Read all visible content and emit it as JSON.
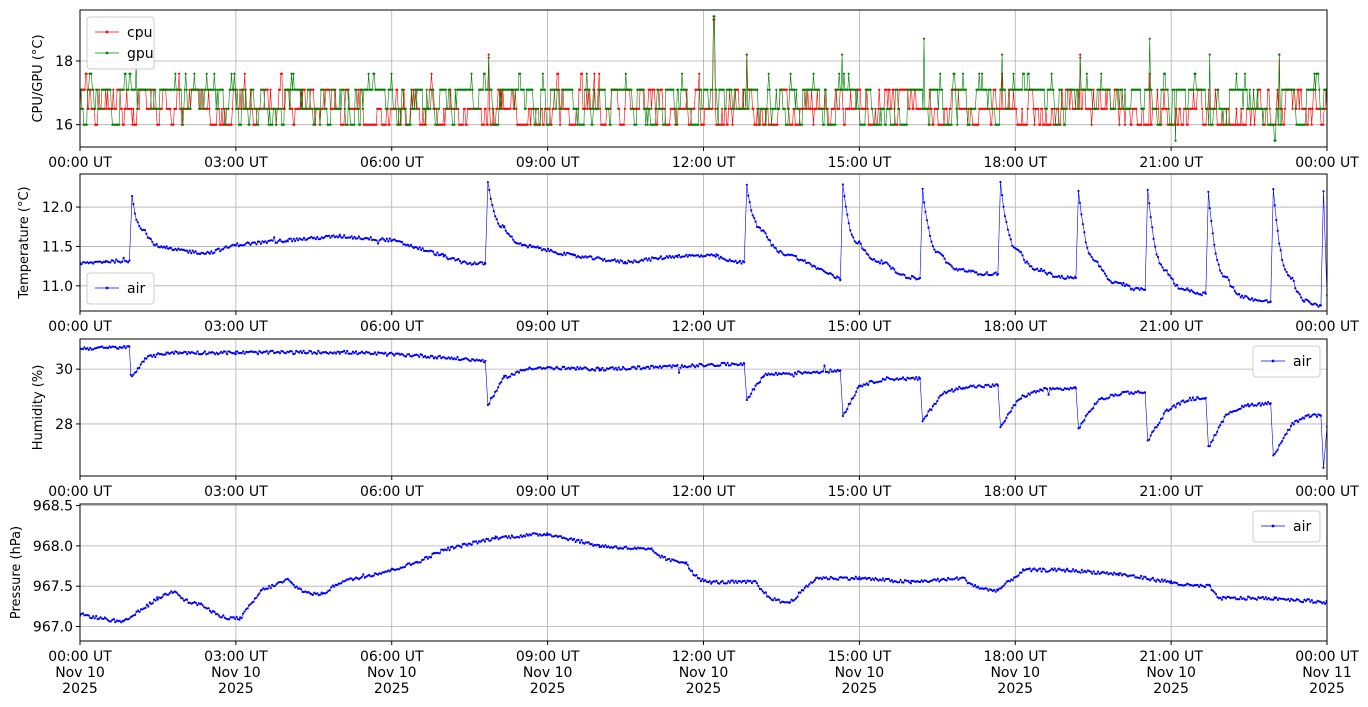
{
  "chart_data": [
    {
      "type": "line",
      "ylabel": "CPU/GPU (°C)",
      "ylim": [
        15.3,
        19.6
      ],
      "yticks": [
        16,
        18
      ],
      "xlim": [
        "2025-11-10T00:00Z",
        "2025-11-11T00:00Z"
      ],
      "xtick_labels": [
        "00:00 UT",
        "03:00 UT",
        "06:00 UT",
        "09:00 UT",
        "12:00 UT",
        "15:00 UT",
        "18:00 UT",
        "21:00 UT",
        "00:00 UT"
      ],
      "grid": true,
      "legend": "upper-left",
      "series": [
        {
          "name": "cpu",
          "color": "#ff0000",
          "baseline": 16.5,
          "levels": [
            16.0,
            16.5,
            17.1,
            17.6
          ],
          "spikes": [
            {
              "x": "2025-11-10T07:52Z",
              "y": 18.2
            },
            {
              "x": "2025-11-10T12:12Z",
              "y": 19.3
            },
            {
              "x": "2025-11-10T12:50Z",
              "y": 18.2
            },
            {
              "x": "2025-11-10T17:45Z",
              "y": 17.6
            },
            {
              "x": "2025-11-10T19:15Z",
              "y": 18.2
            },
            {
              "x": "2025-11-10T20:35Z",
              "y": 17.6
            },
            {
              "x": "2025-11-10T23:05Z",
              "y": 18.2
            }
          ]
        },
        {
          "name": "gpu",
          "color": "#008000",
          "baseline": 17.1,
          "levels": [
            16.0,
            16.5,
            17.1,
            17.6
          ],
          "spikes": [
            {
              "x": "2025-11-10T01:05Z",
              "y": 17.9
            },
            {
              "x": "2025-11-10T07:52Z",
              "y": 18.1
            },
            {
              "x": "2025-11-10T12:12Z",
              "y": 19.4
            },
            {
              "x": "2025-11-10T12:50Z",
              "y": 18.2
            },
            {
              "x": "2025-11-10T14:40Z",
              "y": 18.2
            },
            {
              "x": "2025-11-10T16:15Z",
              "y": 18.7
            },
            {
              "x": "2025-11-10T17:45Z",
              "y": 18.2
            },
            {
              "x": "2025-11-10T19:15Z",
              "y": 18.1
            },
            {
              "x": "2025-11-10T20:35Z",
              "y": 18.7
            },
            {
              "x": "2025-11-10T21:45Z",
              "y": 18.2
            },
            {
              "x": "2025-11-10T23:05Z",
              "y": 18.2
            },
            {
              "x": "2025-11-10T21:05Z",
              "y": 15.5
            },
            {
              "x": "2025-11-10T23:00Z",
              "y": 15.5
            }
          ]
        }
      ]
    },
    {
      "type": "line",
      "ylabel": "Temperature (°C)",
      "ylim": [
        10.68,
        12.42
      ],
      "yticks": [
        11.0,
        11.5,
        12.0
      ],
      "ytick_labels": [
        "11.0",
        "11.5",
        "12.0"
      ],
      "xlim": [
        "2025-11-10T00:00Z",
        "2025-11-11T00:00Z"
      ],
      "xtick_labels": [
        "00:00 UT",
        "03:00 UT",
        "06:00 UT",
        "09:00 UT",
        "12:00 UT",
        "15:00 UT",
        "18:00 UT",
        "21:00 UT",
        "00:00 UT"
      ],
      "grid": true,
      "legend": "lower-left",
      "series": [
        {
          "name": "air",
          "color": "#0000ff",
          "points": [
            [
              "2025-11-10T00:00Z",
              11.28
            ],
            [
              "2025-11-10T00:30Z",
              11.31
            ],
            [
              "2025-11-10T00:57Z",
              11.32
            ],
            [
              "2025-11-10T01:00Z",
              12.15
            ],
            [
              "2025-11-10T01:15Z",
              11.7
            ],
            [
              "2025-11-10T01:40Z",
              11.48
            ],
            [
              "2025-11-10T02:00Z",
              11.45
            ],
            [
              "2025-11-10T02:30Z",
              11.42
            ],
            [
              "2025-11-10T03:00Z",
              11.52
            ],
            [
              "2025-11-10T04:00Z",
              11.58
            ],
            [
              "2025-11-10T05:00Z",
              11.63
            ],
            [
              "2025-11-10T06:00Z",
              11.58
            ],
            [
              "2025-11-10T07:00Z",
              11.38
            ],
            [
              "2025-11-10T07:48Z",
              11.28
            ],
            [
              "2025-11-10T07:51Z",
              12.33
            ],
            [
              "2025-11-10T08:10Z",
              11.75
            ],
            [
              "2025-11-10T08:40Z",
              11.5
            ],
            [
              "2025-11-10T09:30Z",
              11.38
            ],
            [
              "2025-11-10T10:30Z",
              11.3
            ],
            [
              "2025-11-10T11:30Z",
              11.38
            ],
            [
              "2025-11-10T12:15Z",
              11.38
            ],
            [
              "2025-11-10T12:47Z",
              11.3
            ],
            [
              "2025-11-10T12:50Z",
              12.28
            ],
            [
              "2025-11-10T13:10Z",
              11.7
            ],
            [
              "2025-11-10T13:40Z",
              11.4
            ],
            [
              "2025-11-10T14:38Z",
              11.08
            ],
            [
              "2025-11-10T14:41Z",
              12.3
            ],
            [
              "2025-11-10T15:00Z",
              11.55
            ],
            [
              "2025-11-10T15:30Z",
              11.3
            ],
            [
              "2025-11-10T16:10Z",
              11.1
            ],
            [
              "2025-11-10T16:13Z",
              12.22
            ],
            [
              "2025-11-10T16:35Z",
              11.4
            ],
            [
              "2025-11-10T17:00Z",
              11.2
            ],
            [
              "2025-11-10T17:40Z",
              11.15
            ],
            [
              "2025-11-10T17:43Z",
              12.32
            ],
            [
              "2025-11-10T18:05Z",
              11.45
            ],
            [
              "2025-11-10T18:30Z",
              11.2
            ],
            [
              "2025-11-10T19:10Z",
              11.1
            ],
            [
              "2025-11-10T19:13Z",
              12.22
            ],
            [
              "2025-11-10T19:35Z",
              11.3
            ],
            [
              "2025-11-10T20:05Z",
              11.02
            ],
            [
              "2025-11-10T20:30Z",
              10.95
            ],
            [
              "2025-11-10T20:33Z",
              12.23
            ],
            [
              "2025-11-10T20:55Z",
              11.2
            ],
            [
              "2025-11-10T21:20Z",
              10.95
            ],
            [
              "2025-11-10T21:40Z",
              10.9
            ],
            [
              "2025-11-10T21:43Z",
              12.2
            ],
            [
              "2025-11-10T22:05Z",
              11.1
            ],
            [
              "2025-11-10T22:30Z",
              10.85
            ],
            [
              "2025-11-10T22:55Z",
              10.8
            ],
            [
              "2025-11-10T22:58Z",
              12.23
            ],
            [
              "2025-11-10T23:20Z",
              11.1
            ],
            [
              "2025-11-10T23:40Z",
              10.8
            ],
            [
              "2025-11-10T23:53Z",
              10.75
            ],
            [
              "2025-11-10T23:56Z",
              12.2
            ],
            [
              "2025-11-11T00:00Z",
              10.88
            ]
          ]
        }
      ]
    },
    {
      "type": "line",
      "ylabel": "Humidity (%)",
      "ylim": [
        26.1,
        31.1
      ],
      "yticks": [
        28,
        30
      ],
      "xlim": [
        "2025-11-10T00:00Z",
        "2025-11-11T00:00Z"
      ],
      "xtick_labels": [
        "00:00 UT",
        "03:00 UT",
        "06:00 UT",
        "09:00 UT",
        "12:00 UT",
        "15:00 UT",
        "18:00 UT",
        "21:00 UT",
        "00:00 UT"
      ],
      "grid": true,
      "legend": "upper-right",
      "series": [
        {
          "name": "air",
          "color": "#0000ff",
          "points": [
            [
              "2025-11-10T00:00Z",
              30.75
            ],
            [
              "2025-11-10T00:57Z",
              30.8
            ],
            [
              "2025-11-10T01:00Z",
              29.7
            ],
            [
              "2025-11-10T01:15Z",
              30.4
            ],
            [
              "2025-11-10T01:40Z",
              30.6
            ],
            [
              "2025-11-10T03:00Z",
              30.6
            ],
            [
              "2025-11-10T05:00Z",
              30.62
            ],
            [
              "2025-11-10T06:30Z",
              30.5
            ],
            [
              "2025-11-10T07:48Z",
              30.3
            ],
            [
              "2025-11-10T07:51Z",
              28.7
            ],
            [
              "2025-11-10T08:10Z",
              29.7
            ],
            [
              "2025-11-10T08:40Z",
              30.05
            ],
            [
              "2025-11-10T10:00Z",
              30.0
            ],
            [
              "2025-11-10T11:30Z",
              30.1
            ],
            [
              "2025-11-10T12:47Z",
              30.2
            ],
            [
              "2025-11-10T12:50Z",
              28.9
            ],
            [
              "2025-11-10T13:10Z",
              29.8
            ],
            [
              "2025-11-10T14:38Z",
              29.95
            ],
            [
              "2025-11-10T14:41Z",
              28.3
            ],
            [
              "2025-11-10T15:00Z",
              29.4
            ],
            [
              "2025-11-10T15:30Z",
              29.65
            ],
            [
              "2025-11-10T16:10Z",
              29.65
            ],
            [
              "2025-11-10T16:13Z",
              28.1
            ],
            [
              "2025-11-10T16:35Z",
              29.1
            ],
            [
              "2025-11-10T17:00Z",
              29.35
            ],
            [
              "2025-11-10T17:40Z",
              29.4
            ],
            [
              "2025-11-10T17:43Z",
              27.9
            ],
            [
              "2025-11-10T18:05Z",
              28.95
            ],
            [
              "2025-11-10T18:30Z",
              29.25
            ],
            [
              "2025-11-10T19:10Z",
              29.3
            ],
            [
              "2025-11-10T19:13Z",
              27.85
            ],
            [
              "2025-11-10T19:35Z",
              28.85
            ],
            [
              "2025-11-10T20:05Z",
              29.15
            ],
            [
              "2025-11-10T20:30Z",
              29.15
            ],
            [
              "2025-11-10T20:33Z",
              27.4
            ],
            [
              "2025-11-10T20:55Z",
              28.5
            ],
            [
              "2025-11-10T21:20Z",
              28.9
            ],
            [
              "2025-11-10T21:40Z",
              28.95
            ],
            [
              "2025-11-10T21:43Z",
              27.15
            ],
            [
              "2025-11-10T22:05Z",
              28.4
            ],
            [
              "2025-11-10T22:30Z",
              28.7
            ],
            [
              "2025-11-10T22:55Z",
              28.75
            ],
            [
              "2025-11-10T22:58Z",
              26.85
            ],
            [
              "2025-11-10T23:20Z",
              28.0
            ],
            [
              "2025-11-10T23:40Z",
              28.3
            ],
            [
              "2025-11-10T23:53Z",
              28.3
            ],
            [
              "2025-11-10T23:56Z",
              26.4
            ],
            [
              "2025-11-11T00:00Z",
              27.9
            ]
          ]
        }
      ]
    },
    {
      "type": "line",
      "ylabel": "Pressure (hPa)",
      "ylim": [
        966.82,
        968.52
      ],
      "yticks": [
        967.0,
        967.5,
        968.0,
        968.5
      ],
      "ytick_labels": [
        "967.0",
        "967.5",
        "968.0",
        "968.5"
      ],
      "xlim": [
        "2025-11-10T00:00Z",
        "2025-11-11T00:00Z"
      ],
      "xtick_labels": [
        "00:00 UT\nNov 10\n2025",
        "03:00 UT\nNov 10\n2025",
        "06:00 UT\nNov 10\n2025",
        "09:00 UT\nNov 10\n2025",
        "12:00 UT\nNov 10\n2025",
        "15:00 UT\nNov 10\n2025",
        "18:00 UT\nNov 10\n2025",
        "21:00 UT\nNov 10\n2025",
        "00:00 UT\nNov 11\n2025"
      ],
      "grid": true,
      "legend": "upper-right",
      "series": [
        {
          "name": "air",
          "color": "#0000ff",
          "points": [
            [
              "2025-11-10T00:00Z",
              967.15
            ],
            [
              "2025-11-10T00:50Z",
              967.05
            ],
            [
              "2025-11-10T01:30Z",
              967.35
            ],
            [
              "2025-11-10T01:50Z",
              967.45
            ],
            [
              "2025-11-10T02:20Z",
              967.28
            ],
            [
              "2025-11-10T03:05Z",
              967.1
            ],
            [
              "2025-11-10T03:30Z",
              967.45
            ],
            [
              "2025-11-10T04:00Z",
              967.58
            ],
            [
              "2025-11-10T04:40Z",
              967.4
            ],
            [
              "2025-11-10T05:00Z",
              967.55
            ],
            [
              "2025-11-10T06:00Z",
              967.7
            ],
            [
              "2025-11-10T06:30Z",
              967.8
            ],
            [
              "2025-11-10T07:00Z",
              967.95
            ],
            [
              "2025-11-10T08:00Z",
              968.1
            ],
            [
              "2025-11-10T09:00Z",
              968.15
            ],
            [
              "2025-11-10T10:00Z",
              968.0
            ],
            [
              "2025-11-10T11:00Z",
              967.95
            ],
            [
              "2025-11-10T11:40Z",
              967.8
            ],
            [
              "2025-11-10T12:10Z",
              967.55
            ],
            [
              "2025-11-10T13:00Z",
              967.55
            ],
            [
              "2025-11-10T13:40Z",
              967.3
            ],
            [
              "2025-11-10T14:10Z",
              967.6
            ],
            [
              "2025-11-10T15:00Z",
              967.6
            ],
            [
              "2025-11-10T16:00Z",
              967.55
            ],
            [
              "2025-11-10T17:00Z",
              967.6
            ],
            [
              "2025-11-10T17:40Z",
              967.45
            ],
            [
              "2025-11-10T18:10Z",
              967.7
            ],
            [
              "2025-11-10T19:00Z",
              967.7
            ],
            [
              "2025-11-10T20:00Z",
              967.65
            ],
            [
              "2025-11-10T21:00Z",
              967.55
            ],
            [
              "2025-11-10T21:45Z",
              967.5
            ],
            [
              "2025-11-10T22:00Z",
              967.35
            ],
            [
              "2025-11-10T23:00Z",
              967.35
            ],
            [
              "2025-11-11T00:00Z",
              967.3
            ]
          ]
        }
      ]
    }
  ]
}
